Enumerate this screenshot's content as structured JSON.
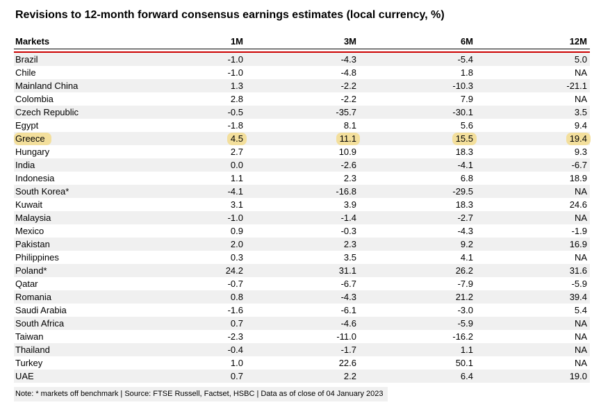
{
  "title": "Revisions to 12-month forward consensus earnings estimates (local currency, %)",
  "footnote": "Note: * markets off benchmark | Source: FTSE Russell, Factset, HSBC | Data as of close of 04 January 2023",
  "colors": {
    "header_rule_red": "#cc0000",
    "row_stripe": "#f0f0f0",
    "highlight_gold": "#f3df9c",
    "text": "#000000"
  },
  "chart_data": {
    "type": "table",
    "title": "Revisions to 12-month forward consensus earnings estimates (local currency, %)",
    "columns": [
      "Markets",
      "1M",
      "3M",
      "6M",
      "12M"
    ],
    "highlighted_row": "Greece",
    "rows": [
      {
        "market": "Brazil",
        "values": [
          "-1.0",
          "-4.3",
          "-5.4",
          "5.0"
        ],
        "highlighted": false
      },
      {
        "market": "Chile",
        "values": [
          "-1.0",
          "-4.8",
          "1.8",
          "NA"
        ],
        "highlighted": false
      },
      {
        "market": "Mainland China",
        "values": [
          "1.3",
          "-2.2",
          "-10.3",
          "-21.1"
        ],
        "highlighted": false
      },
      {
        "market": "Colombia",
        "values": [
          "2.8",
          "-2.2",
          "7.9",
          "NA"
        ],
        "highlighted": false
      },
      {
        "market": "Czech Republic",
        "values": [
          "-0.5",
          "-35.7",
          "-30.1",
          "3.5"
        ],
        "highlighted": false
      },
      {
        "market": "Egypt",
        "values": [
          "-1.8",
          "8.1",
          "5.6",
          "9.4"
        ],
        "highlighted": false
      },
      {
        "market": "Greece",
        "values": [
          "4.5",
          "11.1",
          "15.5",
          "19.4"
        ],
        "highlighted": true
      },
      {
        "market": "Hungary",
        "values": [
          "2.7",
          "10.9",
          "18.3",
          "9.3"
        ],
        "highlighted": false
      },
      {
        "market": "India",
        "values": [
          "0.0",
          "-2.6",
          "-4.1",
          "-6.7"
        ],
        "highlighted": false
      },
      {
        "market": "Indonesia",
        "values": [
          "1.1",
          "2.3",
          "6.8",
          "18.9"
        ],
        "highlighted": false
      },
      {
        "market": "South Korea*",
        "values": [
          "-4.1",
          "-16.8",
          "-29.5",
          "NA"
        ],
        "highlighted": false
      },
      {
        "market": "Kuwait",
        "values": [
          "3.1",
          "3.9",
          "18.3",
          "24.6"
        ],
        "highlighted": false
      },
      {
        "market": "Malaysia",
        "values": [
          "-1.0",
          "-1.4",
          "-2.7",
          "NA"
        ],
        "highlighted": false
      },
      {
        "market": "Mexico",
        "values": [
          "0.9",
          "-0.3",
          "-4.3",
          "-1.9"
        ],
        "highlighted": false
      },
      {
        "market": "Pakistan",
        "values": [
          "2.0",
          "2.3",
          "9.2",
          "16.9"
        ],
        "highlighted": false
      },
      {
        "market": "Philippines",
        "values": [
          "0.3",
          "3.5",
          "4.1",
          "NA"
        ],
        "highlighted": false
      },
      {
        "market": "Poland*",
        "values": [
          "24.2",
          "31.1",
          "26.2",
          "31.6"
        ],
        "highlighted": false
      },
      {
        "market": "Qatar",
        "values": [
          "-0.7",
          "-6.7",
          "-7.9",
          "-5.9"
        ],
        "highlighted": false
      },
      {
        "market": "Romania",
        "values": [
          "0.8",
          "-4.3",
          "21.2",
          "39.4"
        ],
        "highlighted": false
      },
      {
        "market": "Saudi Arabia",
        "values": [
          "-1.6",
          "-6.1",
          "-3.0",
          "5.4"
        ],
        "highlighted": false
      },
      {
        "market": "South Africa",
        "values": [
          "0.7",
          "-4.6",
          "-5.9",
          "NA"
        ],
        "highlighted": false
      },
      {
        "market": "Taiwan",
        "values": [
          "-2.3",
          "-11.0",
          "-16.2",
          "NA"
        ],
        "highlighted": false
      },
      {
        "market": "Thailand",
        "values": [
          "-0.4",
          "-1.7",
          "1.1",
          "NA"
        ],
        "highlighted": false
      },
      {
        "market": "Turkey",
        "values": [
          "1.0",
          "22.6",
          "50.1",
          "NA"
        ],
        "highlighted": false
      },
      {
        "market": "UAE",
        "values": [
          "0.7",
          "2.2",
          "6.4",
          "19.0"
        ],
        "highlighted": false
      }
    ]
  }
}
